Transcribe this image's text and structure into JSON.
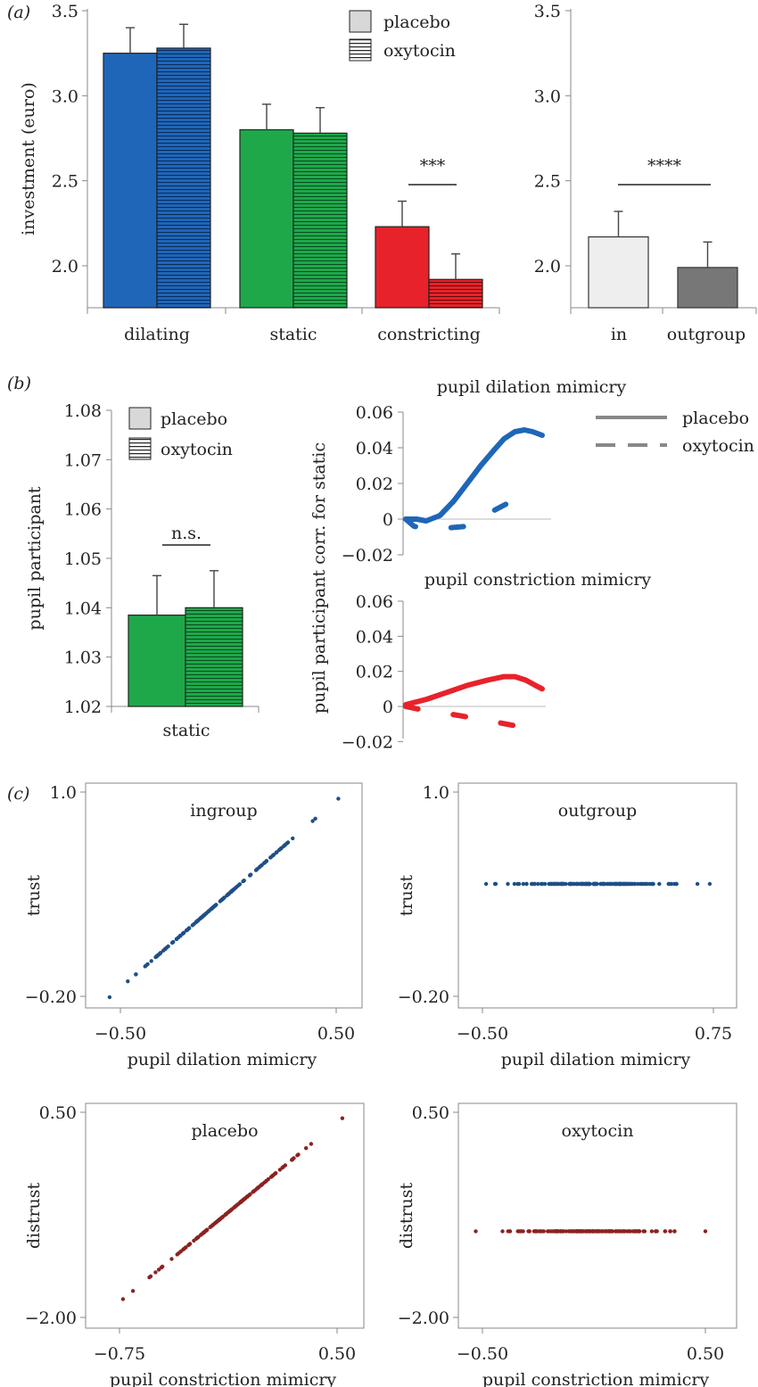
{
  "panel_labels": {
    "a": "(a)",
    "b": "(b)",
    "c": "(c)"
  },
  "colors": {
    "blue": "#1f66b8",
    "green": "#1ea84a",
    "red": "#e8222a",
    "placebo_legend": "#d8d8d8",
    "in": "#eeeeee",
    "outgroup": "#777777",
    "scatter_blue": "#1f4f86",
    "scatter_red": "#8b2222"
  },
  "chart_data": [
    {
      "id": "a_left",
      "type": "bar",
      "ylabel": "investment (euro)",
      "ylim": [
        1.75,
        3.5
      ],
      "yticks": [
        "2.0",
        "2.5",
        "3.0",
        "3.5"
      ],
      "categories": [
        "dilating",
        "static",
        "constricting"
      ],
      "series": [
        {
          "name": "placebo",
          "values": [
            3.25,
            2.8,
            2.23
          ],
          "errors": [
            0.15,
            0.15,
            0.15
          ]
        },
        {
          "name": "oxytocin",
          "values": [
            3.28,
            2.78,
            1.92
          ],
          "errors": [
            0.14,
            0.15,
            0.15
          ]
        }
      ],
      "legend": [
        "placebo",
        "oxytocin"
      ],
      "annotation": "***"
    },
    {
      "id": "a_right",
      "type": "bar",
      "ylim": [
        1.75,
        3.5
      ],
      "yticks": [
        "2.0",
        "2.5",
        "3.0",
        "3.5"
      ],
      "categories": [
        "in",
        "outgroup"
      ],
      "values": [
        2.17,
        1.99
      ],
      "errors": [
        0.15,
        0.15
      ],
      "annotation": "****"
    },
    {
      "id": "b_left",
      "type": "bar",
      "ylabel": "pupil participant",
      "ylim": [
        1.02,
        1.08
      ],
      "yticks": [
        "1.02",
        "1.03",
        "1.04",
        "1.05",
        "1.06",
        "1.07",
        "1.08"
      ],
      "categories": [
        "static"
      ],
      "series": [
        {
          "name": "placebo",
          "values": [
            1.0385
          ],
          "errors": [
            0.008
          ]
        },
        {
          "name": "oxytocin",
          "values": [
            1.04
          ],
          "errors": [
            0.0075
          ]
        }
      ],
      "legend": [
        "placebo",
        "oxytocin"
      ],
      "annotation": "n.s."
    },
    {
      "id": "b_right",
      "type": "line",
      "ylabel": "pupil participant corr. for static",
      "legend": [
        "placebo",
        "oxytocin"
      ],
      "yticks": [
        "0.06",
        "0.04",
        "0.02",
        "0",
        "−0.02"
      ],
      "subplots": [
        {
          "title": "pupil dilation mimicry",
          "ylim": [
            -0.02,
            0.06
          ],
          "series": [
            {
              "name": "placebo",
              "style": "solid",
              "x": [
                0,
                0.08,
                0.15,
                0.25,
                0.35,
                0.45,
                0.55,
                0.65,
                0.72,
                0.8,
                0.87,
                0.93,
                1.0
              ],
              "y": [
                0,
                0.0,
                -0.001,
                0.002,
                0.01,
                0.02,
                0.03,
                0.039,
                0.045,
                0.049,
                0.05,
                0.049,
                0.047
              ]
            },
            {
              "name": "oxytocin",
              "style": "dashed",
              "x": [
                0,
                0.06,
                0.12,
                0.3,
                0.45,
                0.55,
                0.7,
                0.8,
                0.87
              ],
              "y": [
                0,
                -0.004,
                -0.005,
                -0.005,
                -0.004,
                0.001,
                0.007,
                0.011,
                0.014
              ]
            }
          ]
        },
        {
          "title": "pupil constriction mimicry",
          "ylim": [
            -0.02,
            0.06
          ],
          "series": [
            {
              "name": "placebo",
              "style": "solid",
              "x": [
                0,
                0.15,
                0.3,
                0.45,
                0.6,
                0.72,
                0.8,
                0.88,
                0.95,
                1.0
              ],
              "y": [
                0.001,
                0.004,
                0.008,
                0.012,
                0.015,
                0.017,
                0.017,
                0.015,
                0.012,
                0.01
              ]
            },
            {
              "name": "oxytocin",
              "style": "dashed",
              "x": [
                0,
                0.12,
                0.3,
                0.45,
                0.6,
                0.8,
                0.87
              ],
              "y": [
                0,
                -0.002,
                -0.004,
                -0.006,
                -0.008,
                -0.011,
                -0.014
              ]
            }
          ]
        }
      ]
    },
    {
      "id": "c_ingroup",
      "type": "scatter",
      "title": "ingroup",
      "xlabel": "pupil dilation mimicry",
      "ylabel": "trust",
      "xlim": [
        -0.6,
        0.6
      ],
      "ylim": [
        -0.2,
        1.0
      ],
      "xticks": [
        "−0.50",
        "0.50"
      ],
      "yticks": [
        "1.0",
        "−0.20"
      ],
      "points": {
        "x_range": [
          -0.55,
          0.51
        ],
        "intercept": 0.4,
        "slope": 1.1,
        "n": 150
      }
    },
    {
      "id": "c_outgroup",
      "type": "scatter",
      "title": "outgroup",
      "xlabel": "pupil dilation mimicry",
      "ylabel": "trust",
      "xlim": [
        -0.55,
        0.85
      ],
      "ylim": [
        -0.2,
        1.0
      ],
      "xticks": [
        "−0.50",
        "0.75"
      ],
      "yticks": [
        "1.0",
        "−0.20"
      ],
      "points": {
        "x_range": [
          -0.48,
          0.73
        ],
        "intercept": 0.46,
        "slope": 0.0,
        "n": 150
      }
    },
    {
      "id": "c_placebo",
      "type": "scatter",
      "title": "placebo",
      "xlabel": "pupil constriction mimicry",
      "ylabel": "distrust",
      "xlim": [
        -0.9,
        0.6
      ],
      "ylim": [
        -2.0,
        0.5
      ],
      "xticks": [
        "−0.75",
        "0.50"
      ],
      "yticks": [
        "0.50",
        "−2.00"
      ],
      "points": {
        "x_range": [
          -0.73,
          0.53
        ],
        "intercept": -0.5,
        "slope": 1.75,
        "n": 150
      }
    },
    {
      "id": "c_oxytocin",
      "type": "scatter",
      "title": "oxytocin",
      "xlabel": "pupil constriction mimicry",
      "ylabel": "distrust",
      "xlim": [
        -0.6,
        0.6
      ],
      "ylim": [
        -2.0,
        0.5
      ],
      "xticks": [
        "−0.50",
        "0.50"
      ],
      "yticks": [
        "0.50",
        "−2.00"
      ],
      "points": {
        "x_range": [
          -0.53,
          0.5
        ],
        "intercept": -0.95,
        "slope": 0.0,
        "n": 150
      }
    }
  ]
}
